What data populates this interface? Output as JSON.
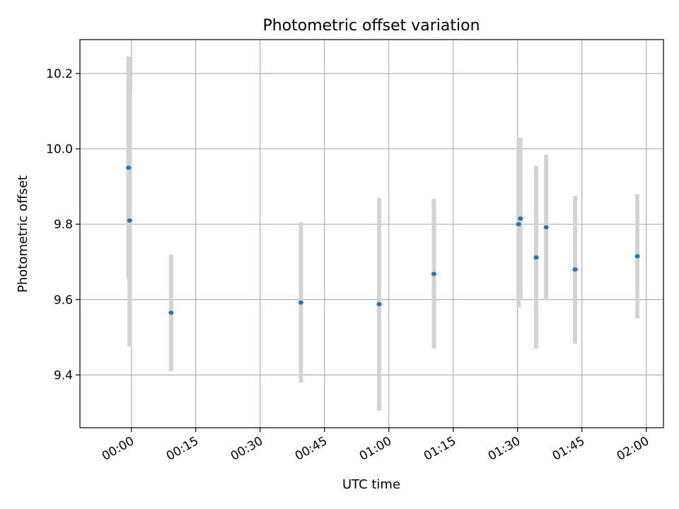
{
  "chart_data": {
    "type": "scatter",
    "title": "Photometric offset variation",
    "xlabel": "UTC time",
    "ylabel": "Photometric offset",
    "xlim": [
      "23:48",
      "02:04"
    ],
    "ylim": [
      9.26,
      10.29
    ],
    "grid": true,
    "x_ticks": [
      "00:00",
      "00:15",
      "00:30",
      "00:45",
      "01:00",
      "01:15",
      "01:30",
      "01:45",
      "02:00"
    ],
    "y_ticks": [
      "9.4",
      "9.6",
      "9.8",
      "10.0",
      "10.2"
    ],
    "x_tick_rotation_deg": 30,
    "marker_color": "#1f77b4",
    "errorbar_color": "#d3d3d3",
    "points": [
      {
        "time": "23:59:20",
        "y": 9.95,
        "ylow": 9.655,
        "yhigh": 10.245
      },
      {
        "time": "23:59:35",
        "y": 9.81,
        "ylow": 9.475,
        "yhigh": 10.145
      },
      {
        "time": "00:09:15",
        "y": 9.565,
        "ylow": 9.41,
        "yhigh": 9.72
      },
      {
        "time": "00:39:30",
        "y": 9.592,
        "ylow": 9.38,
        "yhigh": 9.805
      },
      {
        "time": "00:57:45",
        "y": 9.588,
        "ylow": 9.305,
        "yhigh": 9.87
      },
      {
        "time": "01:10:30",
        "y": 9.668,
        "ylow": 9.47,
        "yhigh": 9.867
      },
      {
        "time": "01:30:15",
        "y": 9.8,
        "ylow": 9.58,
        "yhigh": 10.02
      },
      {
        "time": "01:30:40",
        "y": 9.815,
        "ylow": 9.6,
        "yhigh": 10.03
      },
      {
        "time": "01:34:20",
        "y": 9.712,
        "ylow": 9.47,
        "yhigh": 9.955
      },
      {
        "time": "01:36:40",
        "y": 9.792,
        "ylow": 9.6,
        "yhigh": 9.985
      },
      {
        "time": "01:43:25",
        "y": 9.68,
        "ylow": 9.483,
        "yhigh": 9.875
      },
      {
        "time": "01:57:55",
        "y": 9.715,
        "ylow": 9.55,
        "yhigh": 9.88
      }
    ]
  }
}
